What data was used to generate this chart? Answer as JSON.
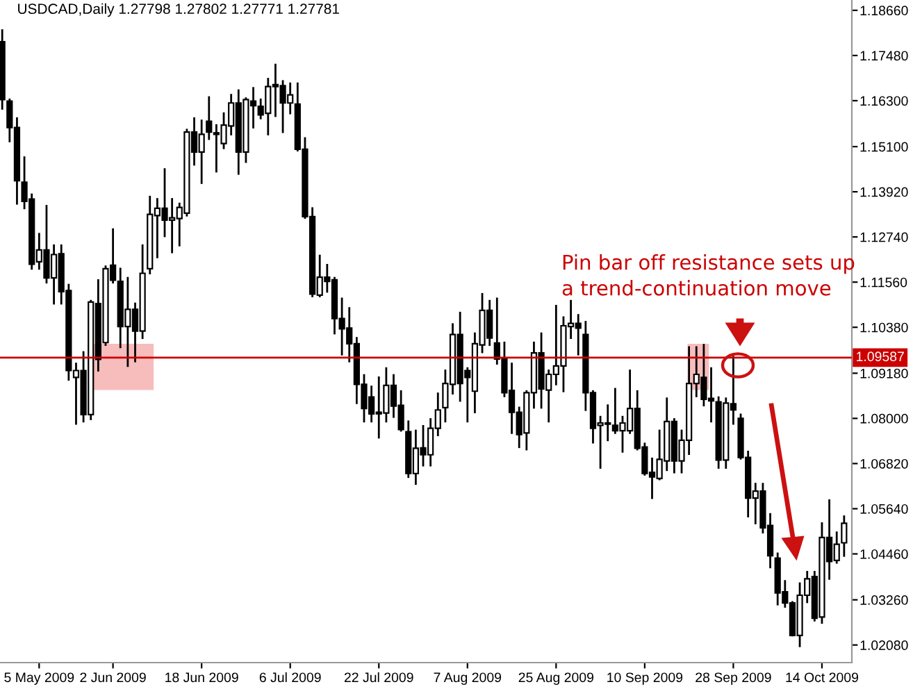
{
  "chart_data": {
    "type": "candlestick",
    "title": "USDCAD,Daily 1.27798 1.27802 1.27771 1.27781",
    "categories": [
      null,
      null,
      null,
      null,
      null,
      "5 May 2009",
      null,
      null,
      null,
      null,
      null,
      null,
      null,
      null,
      null,
      "2 Jun 2009",
      null,
      null,
      null,
      null,
      null,
      null,
      null,
      null,
      null,
      null,
      null,
      "18 Jun 2009",
      null,
      null,
      null,
      null,
      null,
      null,
      null,
      null,
      null,
      null,
      null,
      "6 Jul 2009",
      null,
      null,
      null,
      null,
      null,
      null,
      null,
      null,
      null,
      null,
      null,
      "22 Jul 2009",
      null,
      null,
      null,
      null,
      null,
      null,
      null,
      null,
      null,
      null,
      null,
      "7 Aug 2009",
      null,
      null,
      null,
      null,
      null,
      null,
      null,
      null,
      null,
      null,
      null,
      "25 Aug 2009",
      null,
      null,
      null,
      null,
      null,
      null,
      null,
      null,
      null,
      null,
      null,
      "10 Sep 2009",
      null,
      null,
      null,
      null,
      null,
      null,
      null,
      null,
      null,
      null,
      null,
      "28 Sep 2009",
      null,
      null,
      null,
      null,
      null,
      null,
      null,
      null,
      null,
      null,
      null,
      "14 Oct 2009",
      null,
      null,
      null
    ],
    "ohlc": [
      [
        1.1784,
        1.1814,
        1.1609,
        1.1633
      ],
      [
        1.1629,
        1.1633,
        1.1524,
        1.156
      ],
      [
        1.156,
        1.1584,
        1.1361,
        1.1421
      ],
      [
        1.1417,
        1.1482,
        1.1349,
        1.1367
      ],
      [
        1.1373,
        1.1385,
        1.1191,
        1.1203
      ],
      [
        1.1209,
        1.1282,
        1.1191,
        1.124
      ],
      [
        1.124,
        1.1355,
        1.1155,
        1.1167
      ],
      [
        1.1167,
        1.1252,
        1.11,
        1.1228
      ],
      [
        1.123,
        1.1252,
        1.11,
        1.1131
      ],
      [
        1.1134,
        1.1149,
        1.0901,
        1.0925
      ],
      [
        1.0907,
        1.0943,
        1.0786,
        1.0925
      ],
      [
        1.0925,
        1.0973,
        1.0792,
        1.081
      ],
      [
        1.081,
        1.1107,
        1.0798,
        1.1104
      ],
      [
        1.11,
        1.1161,
        1.0925,
        1.0954
      ],
      [
        1.0998,
        1.1197,
        1.0992,
        1.1191
      ],
      [
        1.12,
        1.1294,
        1.1155,
        1.1161
      ],
      [
        1.1158,
        1.1191,
        1.0986,
        1.104
      ],
      [
        1.104,
        1.1167,
        1.0937,
        1.1085
      ],
      [
        1.1085,
        1.11,
        1.0949,
        1.1028
      ],
      [
        1.1028,
        1.1252,
        1.101,
        1.1179
      ],
      [
        1.1191,
        1.1379,
        1.1179,
        1.1333
      ],
      [
        1.133,
        1.1373,
        1.1221,
        1.1349
      ],
      [
        1.1349,
        1.1451,
        1.1276,
        1.1318
      ],
      [
        1.1318,
        1.1373,
        1.1234,
        1.1324
      ],
      [
        1.1322,
        1.1361,
        1.1252,
        1.1351
      ],
      [
        1.1336,
        1.1554,
        1.133,
        1.1548
      ],
      [
        1.1548,
        1.1584,
        1.1463,
        1.1496
      ],
      [
        1.1496,
        1.1578,
        1.1415,
        1.1542
      ],
      [
        1.1576,
        1.1639,
        1.153,
        1.1548
      ],
      [
        1.1546,
        1.1566,
        1.1445,
        1.1542
      ],
      [
        1.1518,
        1.1597,
        1.1506,
        1.1566
      ],
      [
        1.1564,
        1.1645,
        1.1542,
        1.1624
      ],
      [
        1.1624,
        1.1657,
        1.1439,
        1.1496
      ],
      [
        1.1496,
        1.1636,
        1.147,
        1.1633
      ],
      [
        1.1629,
        1.1663,
        1.156,
        1.1617
      ],
      [
        1.1615,
        1.1633,
        1.1584,
        1.1593
      ],
      [
        1.1597,
        1.1687,
        1.1542,
        1.1667
      ],
      [
        1.1672,
        1.1724,
        1.159,
        1.1667
      ],
      [
        1.1669,
        1.1681,
        1.1548,
        1.1624
      ],
      [
        1.1624,
        1.1675,
        1.1597,
        1.1645
      ],
      [
        1.1621,
        1.1675,
        1.15,
        1.1503
      ],
      [
        1.1503,
        1.1532,
        1.1324,
        1.1327
      ],
      [
        1.1327,
        1.1349,
        1.1119,
        1.1125
      ],
      [
        1.1122,
        1.1225,
        1.1119,
        1.1169
      ],
      [
        1.1169,
        1.1201,
        1.1131,
        1.1158
      ],
      [
        1.1162,
        1.1167,
        1.1022,
        1.1061
      ],
      [
        1.1061,
        1.1113,
        1.0967,
        1.1034
      ],
      [
        1.1036,
        1.1088,
        1.0949,
        1.0995
      ],
      [
        1.0995,
        1.101,
        1.084,
        1.0889
      ],
      [
        1.0889,
        1.0913,
        1.0792,
        1.0826
      ],
      [
        1.0856,
        1.0883,
        1.0792,
        1.0812
      ],
      [
        1.0816,
        1.0907,
        1.075,
        1.0812
      ],
      [
        1.0814,
        1.0931,
        1.0792,
        1.0886
      ],
      [
        1.0886,
        1.0913,
        1.0804,
        1.0832
      ],
      [
        1.0834,
        1.0871,
        1.0768,
        1.0771
      ],
      [
        1.0765,
        1.0792,
        1.0647,
        1.0656
      ],
      [
        1.0656,
        1.0768,
        1.0629,
        1.0722
      ],
      [
        1.0723,
        1.078,
        1.0677,
        1.0705
      ],
      [
        1.0705,
        1.0798,
        1.0677,
        1.0774
      ],
      [
        1.0774,
        1.0865,
        1.0756,
        1.0822
      ],
      [
        1.0828,
        1.0925,
        1.0792,
        1.0891
      ],
      [
        1.0889,
        1.1046,
        1.0865,
        1.1019
      ],
      [
        1.1019,
        1.1076,
        1.0846,
        1.0891
      ],
      [
        1.0925,
        1.0931,
        1.0792,
        1.0907
      ],
      [
        1.0871,
        1.1022,
        1.0816,
        1.0995
      ],
      [
        1.0992,
        1.1125,
        1.0973,
        1.1082
      ],
      [
        1.1082,
        1.1107,
        1.0992,
        1.101
      ],
      [
        1.0997,
        1.1113,
        1.0943,
        1.0955
      ],
      [
        1.0955,
        1.0998,
        1.0858,
        1.0867
      ],
      [
        1.0873,
        1.0943,
        1.0762,
        1.0816
      ],
      [
        1.0816,
        1.0828,
        1.0725,
        1.0758
      ],
      [
        1.0762,
        1.0871,
        1.0719,
        1.0867
      ],
      [
        1.0867,
        1.0998,
        1.0828,
        1.0971
      ],
      [
        1.0971,
        1.1022,
        1.0828,
        1.0877
      ],
      [
        1.0874,
        1.0925,
        1.0792,
        1.0915
      ],
      [
        1.0915,
        1.1094,
        1.0889,
        1.0937
      ],
      [
        1.0937,
        1.1064,
        1.0871,
        1.1042
      ],
      [
        1.104,
        1.1107,
        1.101,
        1.1048
      ],
      [
        1.1048,
        1.107,
        1.0967,
        1.1036
      ],
      [
        1.1019,
        1.1052,
        1.0822,
        1.0867
      ],
      [
        1.0867,
        1.0871,
        1.0737,
        1.0774
      ],
      [
        1.0782,
        1.0804,
        1.0671,
        1.0788
      ],
      [
        1.0788,
        1.0834,
        1.0743,
        1.0785
      ],
      [
        1.0782,
        1.0877,
        1.0762,
        1.0768
      ],
      [
        1.0768,
        1.0804,
        1.0713,
        1.0788
      ],
      [
        1.0768,
        1.0925,
        1.0762,
        1.0826
      ],
      [
        1.0826,
        1.0871,
        1.0719,
        1.0722
      ],
      [
        1.0725,
        1.0734,
        1.0653,
        1.0656
      ],
      [
        1.0659,
        1.0695,
        1.0592,
        1.0647
      ],
      [
        1.0643,
        1.0768,
        1.0641,
        1.0693
      ],
      [
        1.0689,
        1.0852,
        1.0665,
        1.0792
      ],
      [
        1.0792,
        1.0798,
        1.0659,
        1.0689
      ],
      [
        1.0689,
        1.0768,
        1.0659,
        1.0743
      ],
      [
        1.0743,
        1.0986,
        1.0707,
        1.0891
      ],
      [
        1.0891,
        1.0986,
        1.0858,
        1.0915
      ],
      [
        1.0907,
        1.0992,
        1.0834,
        1.085
      ],
      [
        1.0852,
        1.0931,
        1.0792,
        1.0846
      ],
      [
        1.0843,
        1.0855,
        1.0671,
        1.0691
      ],
      [
        1.0691,
        1.0852,
        1.0671,
        1.084
      ],
      [
        1.0838,
        1.0961,
        1.0786,
        1.0822
      ],
      [
        1.08,
        1.081,
        1.0695,
        1.0698
      ],
      [
        1.0698,
        1.0713,
        1.0544,
        1.0592
      ],
      [
        1.0592,
        1.0629,
        1.0526,
        1.061
      ],
      [
        1.061,
        1.0629,
        1.0502,
        1.0514
      ],
      [
        1.052,
        1.055,
        1.0411,
        1.0441
      ],
      [
        1.0435,
        1.0447,
        1.0314,
        1.0344
      ],
      [
        1.0347,
        1.0375,
        1.0308,
        1.0318
      ],
      [
        1.0318,
        1.032,
        1.0233,
        1.0233
      ],
      [
        1.0233,
        1.0369,
        1.0205,
        1.0338
      ],
      [
        1.0338,
        1.0399,
        1.032,
        1.0381
      ],
      [
        1.0387,
        1.0399,
        1.0272,
        1.0278
      ],
      [
        1.0281,
        1.0526,
        1.0266,
        1.0489
      ],
      [
        1.0489,
        1.0586,
        1.0381,
        1.0426
      ],
      [
        1.0429,
        1.0502,
        1.0423,
        1.0471
      ],
      [
        1.0475,
        1.0544,
        1.0441,
        1.0526
      ]
    ],
    "ylim": [
      1.0162,
      1.1893
    ],
    "yticks": [
      {
        "value": 1.1866,
        "label": "1.18660"
      },
      {
        "value": 1.1748,
        "label": "1.17480"
      },
      {
        "value": 1.163,
        "label": "1.16300"
      },
      {
        "value": 1.151,
        "label": "1.15100"
      },
      {
        "value": 1.1392,
        "label": "1.13920"
      },
      {
        "value": 1.1274,
        "label": "1.12740"
      },
      {
        "value": 1.1156,
        "label": "1.11560"
      },
      {
        "value": 1.1038,
        "label": "1.10380"
      },
      {
        "value": 1.0918,
        "label": "1.09180"
      },
      {
        "value": 1.08,
        "label": "1.08000"
      },
      {
        "value": 1.0682,
        "label": "1.06820"
      },
      {
        "value": 1.0564,
        "label": "1.05640"
      },
      {
        "value": 1.0446,
        "label": "1.04460"
      },
      {
        "value": 1.0326,
        "label": "1.03260"
      },
      {
        "value": 1.0208,
        "label": "1.02080"
      }
    ],
    "ref_lines": [
      {
        "axis": "y",
        "value": 1.09587,
        "label": "1.09587",
        "color": "#cc0000"
      }
    ],
    "annotations": [
      "Pin bar off resistance sets up\na trend-continuation move"
    ],
    "grid": false
  }
}
